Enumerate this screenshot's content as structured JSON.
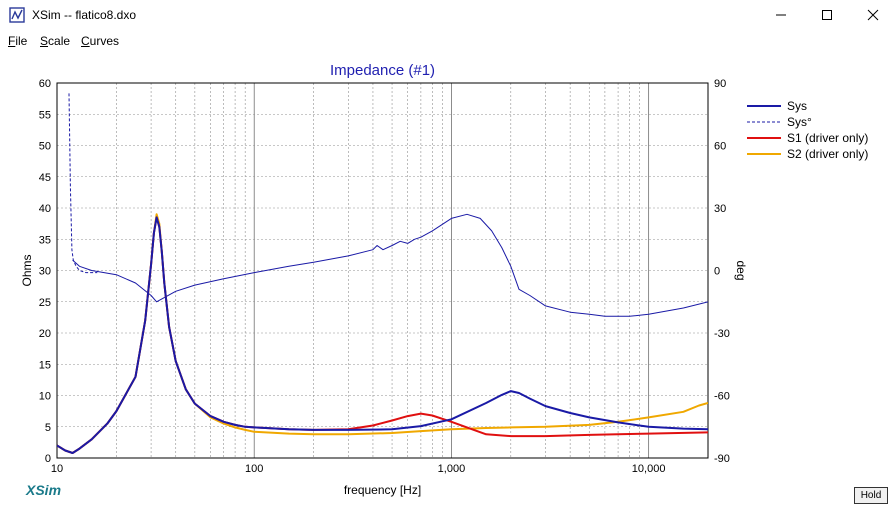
{
  "window": {
    "title": "XSim -- flatico8.dxo",
    "minimize_glyph": "—",
    "maximize_glyph": "☐",
    "close_glyph": "✕"
  },
  "menu": [
    {
      "label": "File",
      "accel": "F"
    },
    {
      "label": "Scale",
      "accel": "S"
    },
    {
      "label": "Curves",
      "accel": "C"
    }
  ],
  "footer": {
    "logo": "XSim",
    "hold_label": "Hold"
  },
  "colors": {
    "sys": "#1a1aa6",
    "s1": "#e01010",
    "s2": "#f0a800",
    "title": "#1f1fb0",
    "logo": "#1a7a8a"
  },
  "chart_data": {
    "type": "line",
    "title": "Impedance (#1)",
    "xlabel": "frequency [Hz]",
    "ylabel": "Ohms",
    "y2label": "deg",
    "xscale": "log",
    "xlim": [
      10,
      20000
    ],
    "ylim": [
      0,
      60
    ],
    "y2lim": [
      -90,
      90
    ],
    "xticks": [
      {
        "value": 10,
        "label": "10"
      },
      {
        "value": 100,
        "label": "100"
      },
      {
        "value": 1000,
        "label": "1,000"
      },
      {
        "value": 10000,
        "label": "10,000"
      }
    ],
    "yticks": [
      "0",
      "5",
      "10",
      "15",
      "20",
      "25",
      "30",
      "35",
      "40",
      "45",
      "50",
      "55",
      "60"
    ],
    "y2ticks": [
      "-90",
      "-60",
      "-30",
      "0",
      "30",
      "60",
      "90"
    ],
    "grid": true,
    "legend_position": "right",
    "series": [
      {
        "name": "Sys",
        "axis": "ohms",
        "style": "solid",
        "x": [
          10,
          11,
          12,
          13,
          15,
          18,
          20,
          25,
          28,
          30,
          31,
          32,
          33,
          34,
          35,
          37,
          40,
          45,
          50,
          60,
          70,
          80,
          90,
          100,
          150,
          200,
          300,
          500,
          700,
          1000,
          1500,
          1800,
          2000,
          2200,
          2500,
          3000,
          4000,
          5000,
          7000,
          10000,
          15000,
          20000
        ],
        "y": [
          2.0,
          1.2,
          0.8,
          1.5,
          3.0,
          5.5,
          7.5,
          13,
          22,
          31,
          36,
          38.5,
          37,
          33,
          28,
          21,
          15.5,
          11,
          8.7,
          6.7,
          5.8,
          5.3,
          5.0,
          4.9,
          4.6,
          4.5,
          4.5,
          4.6,
          5.1,
          6.2,
          8.8,
          10.1,
          10.7,
          10.4,
          9.5,
          8.3,
          7.2,
          6.5,
          5.7,
          5.0,
          4.7,
          4.6
        ]
      },
      {
        "name": "Sys°",
        "axis": "deg",
        "style": "dashed",
        "x": [
          11.5,
          11.7,
          11.9,
          12.1,
          12.5,
          13,
          14,
          16
        ],
        "y": [
          85,
          40,
          10,
          5,
          2,
          0,
          -1,
          -1
        ]
      },
      {
        "name": "S1 (driver only)",
        "axis": "ohms",
        "style": "solid",
        "x": [
          10,
          11,
          12,
          13,
          15,
          18,
          20,
          25,
          28,
          30,
          31,
          32,
          33,
          34,
          35,
          37,
          40,
          45,
          50,
          60,
          70,
          80,
          90,
          100,
          150,
          200,
          300,
          400,
          500,
          600,
          700,
          800,
          1000,
          1300,
          1500,
          2000,
          3000,
          5000,
          7000,
          10000,
          20000
        ],
        "y": [
          2.0,
          1.2,
          0.8,
          1.5,
          3.0,
          5.5,
          7.5,
          13,
          22,
          31,
          36,
          38.5,
          37,
          33,
          28,
          21,
          15.5,
          11,
          8.7,
          6.7,
          5.8,
          5.3,
          5.0,
          4.9,
          4.6,
          4.5,
          4.6,
          5.2,
          6.0,
          6.7,
          7.1,
          6.8,
          5.8,
          4.5,
          3.8,
          3.5,
          3.5,
          3.7,
          3.8,
          3.9,
          4.1
        ]
      },
      {
        "name": "S2 (driver only)",
        "axis": "ohms",
        "style": "solid",
        "x": [
          10,
          11,
          12,
          13,
          15,
          18,
          20,
          25,
          28,
          30,
          31,
          32,
          33,
          34,
          35,
          37,
          40,
          45,
          50,
          60,
          70,
          80,
          90,
          100,
          150,
          200,
          300,
          500,
          700,
          1000,
          1500,
          2000,
          3000,
          5000,
          7000,
          10000,
          15000,
          18000,
          20000
        ],
        "y": [
          2.0,
          1.2,
          0.8,
          1.5,
          3.0,
          5.5,
          7.5,
          13,
          22,
          31,
          36,
          39,
          37.5,
          33,
          28,
          21,
          15.5,
          11,
          8.7,
          6.5,
          5.5,
          4.9,
          4.5,
          4.2,
          3.9,
          3.8,
          3.8,
          4.0,
          4.3,
          4.6,
          4.8,
          4.9,
          5.0,
          5.3,
          5.8,
          6.5,
          7.4,
          8.4,
          8.8
        ]
      },
      {
        "name": "",
        "axis": "deg",
        "style": "solid",
        "note": "phase",
        "x": [
          12,
          13,
          15,
          20,
          25,
          30,
          32,
          35,
          40,
          50,
          70,
          100,
          150,
          200,
          300,
          400,
          420,
          450,
          500,
          550,
          600,
          650,
          700,
          800,
          1000,
          1200,
          1400,
          1600,
          1800,
          2000,
          2200,
          2500,
          3000,
          4000,
          5000,
          6000,
          7000,
          8000,
          10000,
          15000,
          20000
        ],
        "y": [
          5,
          2,
          0,
          -2,
          -6,
          -12,
          -15,
          -13,
          -10,
          -7,
          -4,
          -1,
          2,
          4,
          7,
          10,
          12,
          10,
          12,
          14,
          13,
          15,
          16,
          19,
          25,
          27,
          25,
          19,
          11,
          2,
          -9,
          -12,
          -17,
          -20,
          -21,
          -22,
          -22,
          -22,
          -21,
          -18,
          -15
        ]
      }
    ],
    "legend": [
      "Sys",
      "Sys°",
      "S1 (driver only)",
      "S2 (driver only)"
    ]
  }
}
